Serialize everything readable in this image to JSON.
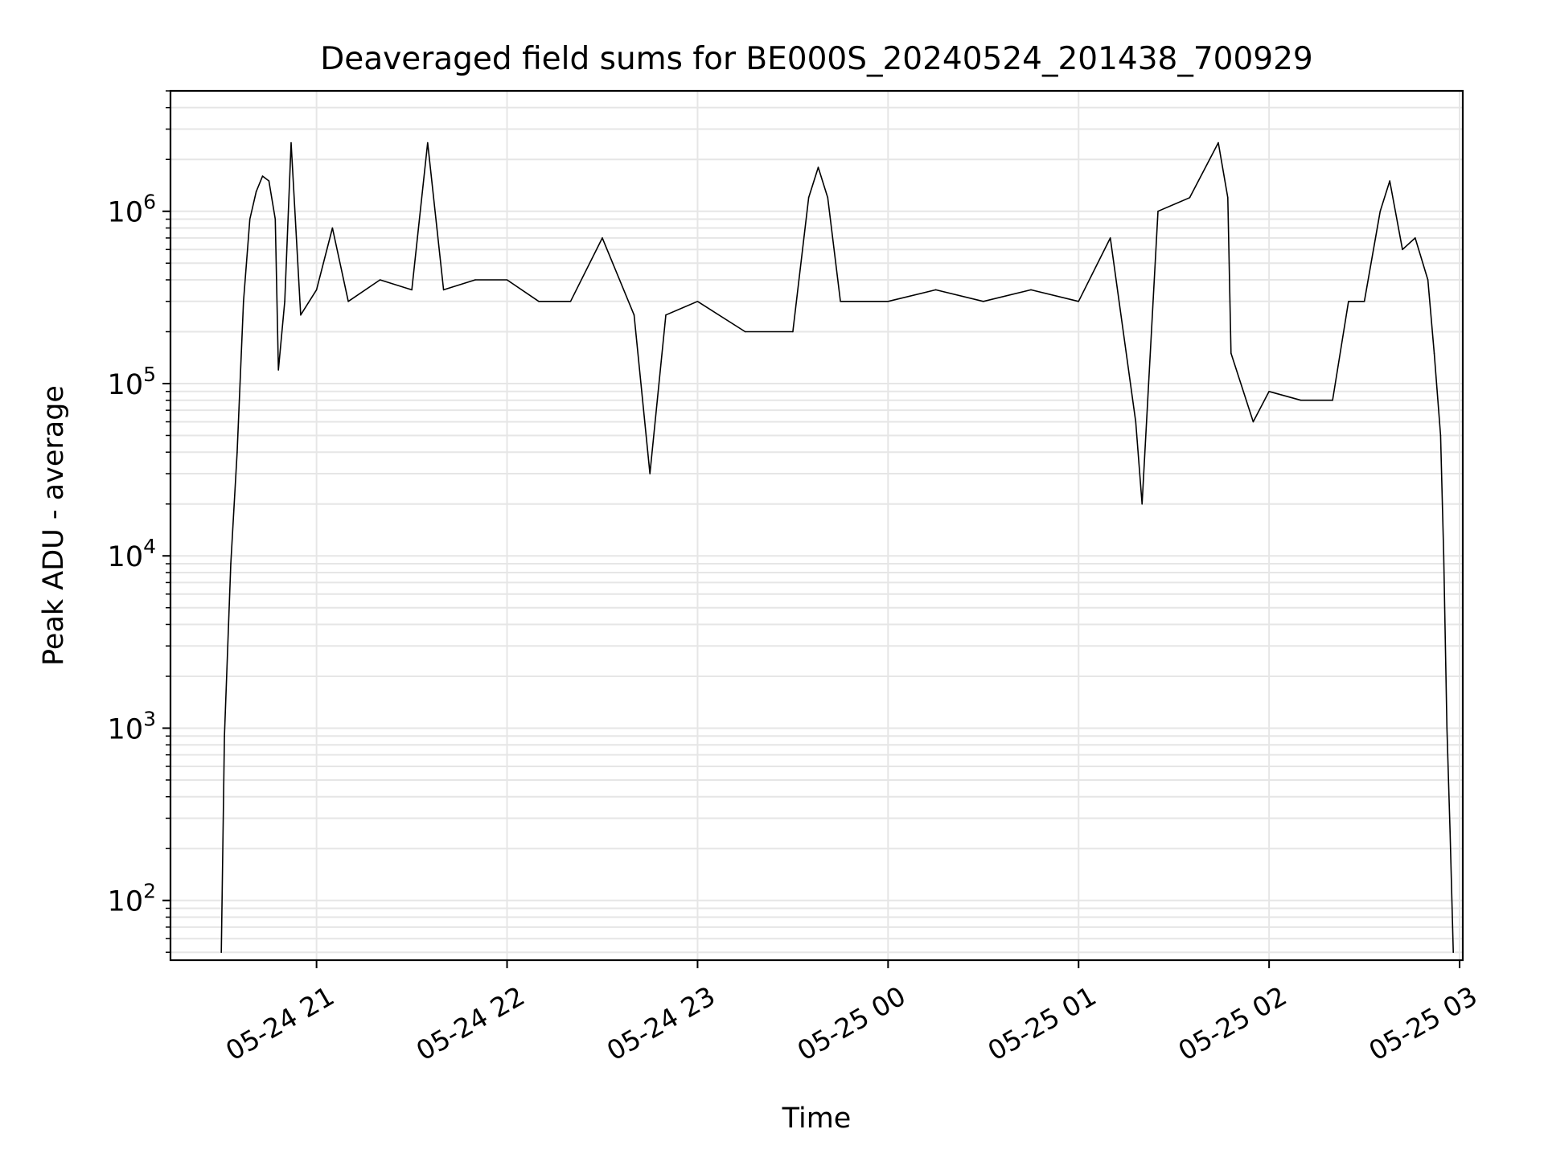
{
  "chart_data": {
    "type": "line",
    "title": "Deaveraged field sums for BE000S_20240524_201438_700929",
    "xlabel": "Time",
    "ylabel": "Peak ADU - average",
    "y_scale": "log",
    "ylim": [
      45,
      5000000
    ],
    "xlim": [
      "2024-05-24 20:14",
      "2024-05-25 03:01"
    ],
    "grid": true,
    "line_color": "#000000",
    "grid_color": "#e6e6e6",
    "x_ticks": [
      {
        "time": "2024-05-24 21:00",
        "label": "05-24 21"
      },
      {
        "time": "2024-05-24 22:00",
        "label": "05-24 22"
      },
      {
        "time": "2024-05-24 23:00",
        "label": "05-24 23"
      },
      {
        "time": "2024-05-25 00:00",
        "label": "05-25 00"
      },
      {
        "time": "2024-05-25 01:00",
        "label": "05-25 01"
      },
      {
        "time": "2024-05-25 02:00",
        "label": "05-25 02"
      },
      {
        "time": "2024-05-25 03:00",
        "label": "05-25 03"
      }
    ],
    "y_ticks": [
      {
        "value": 100,
        "base": "10",
        "exp": "2"
      },
      {
        "value": 1000,
        "base": "10",
        "exp": "3"
      },
      {
        "value": 10000,
        "base": "10",
        "exp": "4"
      },
      {
        "value": 100000,
        "base": "10",
        "exp": "5"
      },
      {
        "value": 1000000,
        "base": "10",
        "exp": "6"
      }
    ],
    "series": [
      {
        "points": [
          [
            "2024-05-24 20:30",
            50
          ],
          [
            "2024-05-24 20:31",
            900
          ],
          [
            "2024-05-24 20:33",
            9000
          ],
          [
            "2024-05-24 20:35",
            40000
          ],
          [
            "2024-05-24 20:37",
            300000
          ],
          [
            "2024-05-24 20:39",
            900000
          ],
          [
            "2024-05-24 20:41",
            1300000
          ],
          [
            "2024-05-24 20:43",
            1600000
          ],
          [
            "2024-05-24 20:45",
            1500000
          ],
          [
            "2024-05-24 20:47",
            900000
          ],
          [
            "2024-05-24 20:48",
            120000
          ],
          [
            "2024-05-24 20:50",
            300000
          ],
          [
            "2024-05-24 20:52",
            2500000
          ],
          [
            "2024-05-24 20:55",
            250000
          ],
          [
            "2024-05-24 21:00",
            350000
          ],
          [
            "2024-05-24 21:05",
            800000
          ],
          [
            "2024-05-24 21:10",
            300000
          ],
          [
            "2024-05-24 21:20",
            400000
          ],
          [
            "2024-05-24 21:30",
            350000
          ],
          [
            "2024-05-24 21:35",
            2500000
          ],
          [
            "2024-05-24 21:40",
            350000
          ],
          [
            "2024-05-24 21:50",
            400000
          ],
          [
            "2024-05-24 22:00",
            400000
          ],
          [
            "2024-05-24 22:10",
            300000
          ],
          [
            "2024-05-24 22:20",
            300000
          ],
          [
            "2024-05-24 22:30",
            700000
          ],
          [
            "2024-05-24 22:40",
            250000
          ],
          [
            "2024-05-24 22:45",
            30000
          ],
          [
            "2024-05-24 22:50",
            250000
          ],
          [
            "2024-05-24 23:00",
            300000
          ],
          [
            "2024-05-24 23:15",
            200000
          ],
          [
            "2024-05-24 23:30",
            200000
          ],
          [
            "2024-05-24 23:35",
            1200000
          ],
          [
            "2024-05-24 23:38",
            1800000
          ],
          [
            "2024-05-24 23:41",
            1200000
          ],
          [
            "2024-05-24 23:45",
            300000
          ],
          [
            "2024-05-25 00:00",
            300000
          ],
          [
            "2024-05-25 00:15",
            350000
          ],
          [
            "2024-05-25 00:30",
            300000
          ],
          [
            "2024-05-25 00:45",
            350000
          ],
          [
            "2024-05-25 01:00",
            300000
          ],
          [
            "2024-05-25 01:10",
            700000
          ],
          [
            "2024-05-25 01:18",
            60000
          ],
          [
            "2024-05-25 01:20",
            20000
          ],
          [
            "2024-05-25 01:25",
            1000000
          ],
          [
            "2024-05-25 01:35",
            1200000
          ],
          [
            "2024-05-25 01:44",
            2500000
          ],
          [
            "2024-05-25 01:47",
            1200000
          ],
          [
            "2024-05-25 01:48",
            150000
          ],
          [
            "2024-05-25 01:55",
            60000
          ],
          [
            "2024-05-25 02:00",
            90000
          ],
          [
            "2024-05-25 02:10",
            80000
          ],
          [
            "2024-05-25 02:20",
            80000
          ],
          [
            "2024-05-25 02:25",
            300000
          ],
          [
            "2024-05-25 02:30",
            300000
          ],
          [
            "2024-05-25 02:35",
            1000000
          ],
          [
            "2024-05-25 02:38",
            1500000
          ],
          [
            "2024-05-25 02:42",
            600000
          ],
          [
            "2024-05-25 02:46",
            700000
          ],
          [
            "2024-05-25 02:50",
            400000
          ],
          [
            "2024-05-25 02:52",
            150000
          ],
          [
            "2024-05-25 02:54",
            50000
          ],
          [
            "2024-05-25 02:55",
            10000
          ],
          [
            "2024-05-25 02:56",
            1000
          ],
          [
            "2024-05-25 02:57",
            250
          ],
          [
            "2024-05-25 02:58",
            50
          ]
        ]
      }
    ]
  }
}
